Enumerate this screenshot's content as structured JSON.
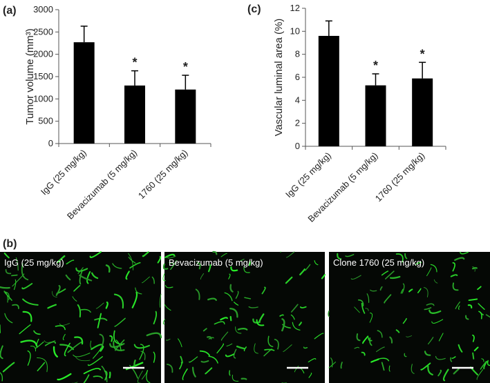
{
  "chart_data": [
    {
      "type": "bar",
      "panel_label": "(a)",
      "y_label": "Tumor volume (mm³)",
      "categories": [
        "IgG (25 mg/kg)",
        "Bevacizumab (5 mg/kg)",
        "1760 (25 mg/kg)"
      ],
      "values": [
        2270,
        1300,
        1210
      ],
      "errors": [
        360,
        330,
        320
      ],
      "color": "#000000",
      "annotations": [
        {
          "x": "Bevacizumab (5 mg/kg)",
          "text": "*"
        },
        {
          "x": "1760 (25 mg/kg)",
          "text": "*"
        }
      ],
      "ylim": [
        0,
        3000
      ],
      "yticks": [
        0,
        500,
        1000,
        1500,
        2000,
        2500,
        3000
      ],
      "grid": false
    },
    {
      "type": "bar",
      "panel_label": "(c)",
      "y_label": "Vascular luminal area (%)",
      "categories": [
        "IgG (25 mg/kg)",
        "Bevacizumab (5 mg/kg)",
        "1760 (25 mg/kg)"
      ],
      "values": [
        9.6,
        5.3,
        5.9
      ],
      "errors": [
        1.3,
        1.0,
        1.4
      ],
      "color": "#000000",
      "annotations": [
        {
          "x": "Bevacizumab (5 mg/kg)",
          "text": "*"
        },
        {
          "x": "1760 (25 mg/kg)",
          "text": "*"
        }
      ],
      "ylim": [
        0,
        12
      ],
      "yticks": [
        0,
        2,
        4,
        6,
        8,
        10,
        12
      ],
      "grid": false
    }
  ],
  "micrographs": {
    "panel_label": "(b)",
    "images": [
      "IgG (25 mg/kg)",
      "Bevacizumab (5 mg/kg)",
      "Clone 1760 (25 mg/kg)"
    ]
  }
}
